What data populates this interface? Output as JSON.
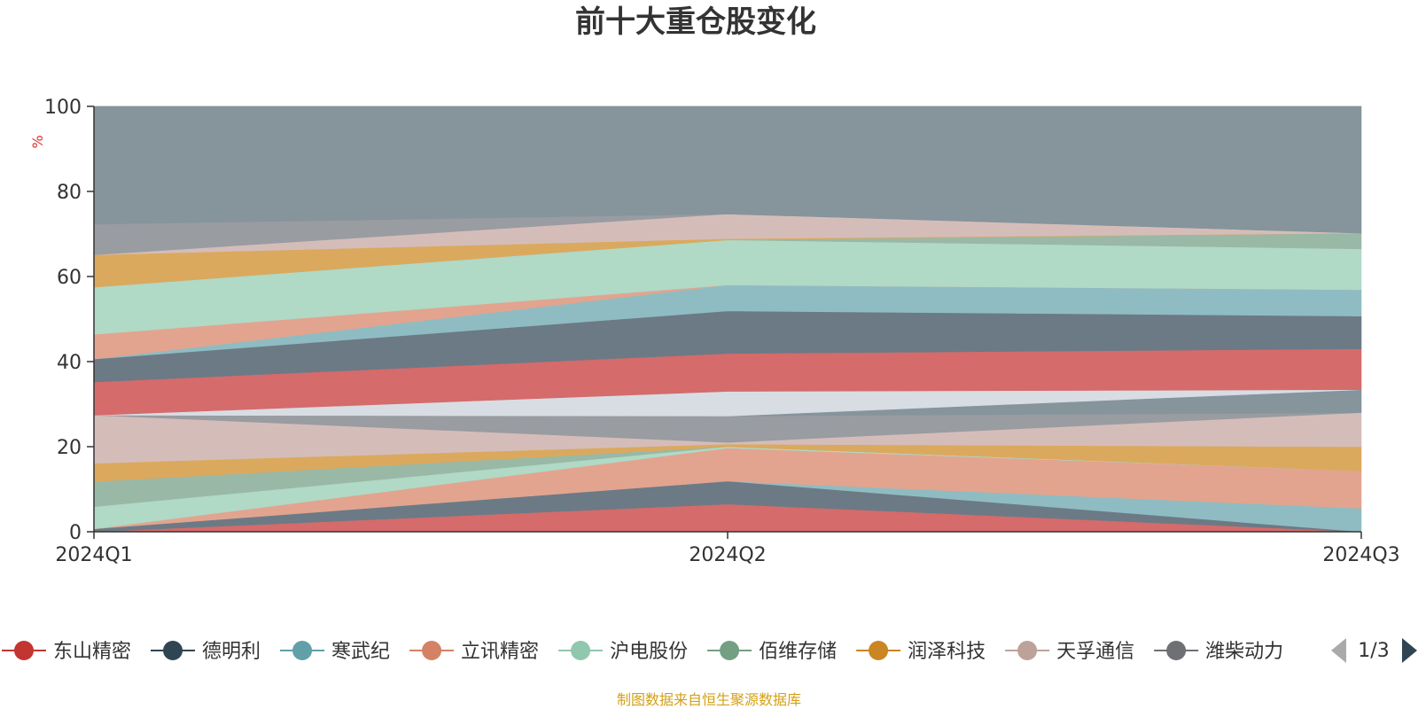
{
  "chart_data": {
    "type": "area",
    "stacked": true,
    "title": "前十大重仓股变化",
    "y_unit": "%",
    "ylim": [
      0,
      100
    ],
    "y_ticks": [
      0,
      20,
      40,
      60,
      80,
      100
    ],
    "categories": [
      "2024Q1",
      "2024Q2",
      "2024Q3"
    ],
    "layers": [
      {
        "color": "#d56b6b",
        "values": [
          0.0,
          6.5,
          0.0
        ]
      },
      {
        "color": "#6c7a85",
        "values": [
          0.7,
          5.4,
          0.0
        ]
      },
      {
        "color": "#8fbcc2",
        "values": [
          0.0,
          0.0,
          5.5
        ]
      },
      {
        "color": "#e2a48f",
        "values": [
          0.0,
          7.8,
          8.8
        ]
      },
      {
        "color": "#b0d9c6",
        "values": [
          5.2,
          0.3,
          0.0
        ]
      },
      {
        "color": "#9ab8a6",
        "values": [
          5.9,
          0.0,
          0.0
        ]
      },
      {
        "color": "#dba95e",
        "values": [
          4.3,
          0.6,
          5.7
        ]
      },
      {
        "color": "#d4bdb9",
        "values": [
          11.3,
          0.4,
          8.0
        ]
      },
      {
        "color": "#999ca1",
        "values": [
          0.0,
          6.2,
          0.0
        ]
      },
      {
        "color": "#86949c",
        "values": [
          0.0,
          0.0,
          5.4
        ]
      },
      {
        "color": "#d7dde3",
        "values": [
          0.0,
          5.8,
          0.0
        ]
      },
      {
        "color": "#d56b6b",
        "values": [
          7.8,
          8.9,
          9.6
        ]
      },
      {
        "color": "#6c7a85",
        "values": [
          5.4,
          10.0,
          7.7
        ]
      },
      {
        "color": "#8fbcc2",
        "values": [
          0.0,
          6.1,
          6.2
        ]
      },
      {
        "color": "#e2a48f",
        "values": [
          5.8,
          0.0,
          0.0
        ]
      },
      {
        "color": "#b0d9c6",
        "values": [
          11.1,
          10.6,
          9.6
        ]
      },
      {
        "color": "#9ab8a6",
        "values": [
          0.0,
          0.0,
          3.7
        ]
      },
      {
        "color": "#dba95e",
        "values": [
          7.6,
          0.3,
          0.0
        ]
      },
      {
        "color": "#d4bdb9",
        "values": [
          0.0,
          5.8,
          0.0
        ]
      },
      {
        "color": "#999ca1",
        "values": [
          7.2,
          0.0,
          0.0
        ]
      },
      {
        "color": "#86949c",
        "values": [
          27.7,
          25.3,
          29.8
        ]
      }
    ],
    "legend": {
      "position": "bottom",
      "page": "1/3",
      "items": [
        {
          "name": "东山精密",
          "color": "#c23531"
        },
        {
          "name": "德明利",
          "color": "#2f4554"
        },
        {
          "name": "寒武纪",
          "color": "#61a0a8"
        },
        {
          "name": "立讯精密",
          "color": "#d48265"
        },
        {
          "name": "沪电股份",
          "color": "#91c7ae"
        },
        {
          "name": "佰维存储",
          "color": "#749f83"
        },
        {
          "name": "润泽科技",
          "color": "#ca8622"
        },
        {
          "name": "天孚通信",
          "color": "#bda29a"
        },
        {
          "name": "潍柴动力",
          "color": "#6e7074"
        }
      ]
    },
    "source": "制图数据来自恒生聚源数据库"
  }
}
